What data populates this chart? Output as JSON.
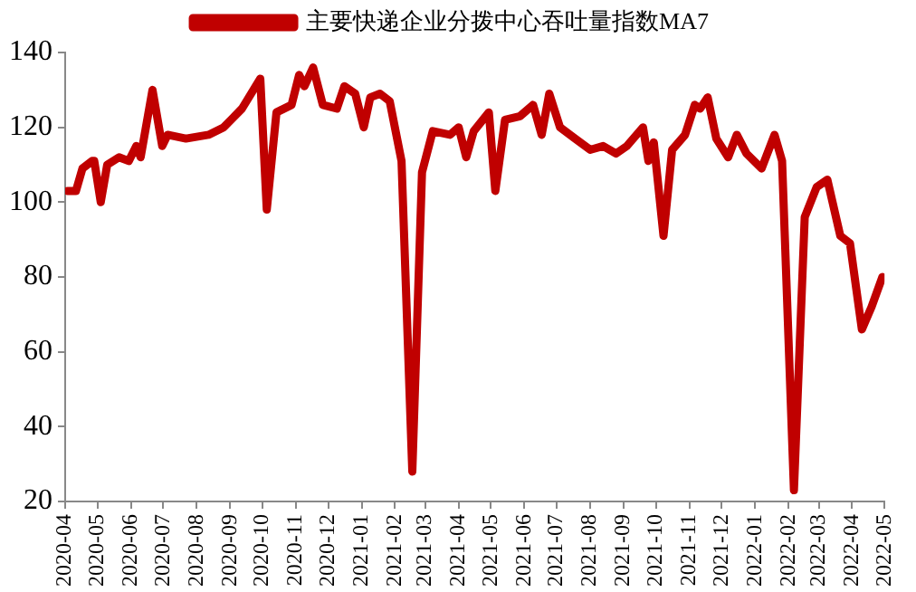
{
  "chart_data": {
    "type": "line",
    "legend": "top",
    "grid": false,
    "xlim": [
      "2020-04",
      "2022-05"
    ],
    "xticks": [
      "2020-04",
      "2020-05",
      "2020-06",
      "2020-07",
      "2020-08",
      "2020-09",
      "2020-10",
      "2020-11",
      "2020-12",
      "2021-01",
      "2021-02",
      "2021-03",
      "2021-04",
      "2021-05",
      "2021-06",
      "2021-07",
      "2021-08",
      "2021-09",
      "2021-10",
      "2021-11",
      "2021-12",
      "2022-01",
      "2022-02",
      "2022-03",
      "2022-04",
      "2022-05"
    ],
    "ylim": [
      20,
      140
    ],
    "yticks": [
      20,
      40,
      60,
      80,
      100,
      120,
      140
    ],
    "series": [
      {
        "name": "主要快递企业分拨中心吞吐量指数MA7",
        "color": "#c00000",
        "x": [
          "2020-04-03",
          "2020-04-11",
          "2020-04-17",
          "2020-04-26",
          "2020-04-28",
          "2020-05-04",
          "2020-05-10",
          "2020-05-21",
          "2020-05-30",
          "2020-06-06",
          "2020-06-10",
          "2020-06-21",
          "2020-06-30",
          "2020-07-05",
          "2020-07-22",
          "2020-08-12",
          "2020-08-26",
          "2020-09-12",
          "2020-09-29",
          "2020-10-05",
          "2020-10-14",
          "2020-10-28",
          "2020-11-04",
          "2020-11-09",
          "2020-11-17",
          "2020-11-26",
          "2020-12-09",
          "2020-12-16",
          "2020-12-26",
          "2021-01-03",
          "2021-01-09",
          "2021-01-18",
          "2021-01-27",
          "2021-02-07",
          "2021-02-17",
          "2021-02-26",
          "2021-03-08",
          "2021-03-24",
          "2021-04-01",
          "2021-04-08",
          "2021-04-15",
          "2021-04-29",
          "2021-05-05",
          "2021-05-14",
          "2021-05-28",
          "2021-06-09",
          "2021-06-17",
          "2021-06-24",
          "2021-07-04",
          "2021-07-18",
          "2021-08-01",
          "2021-08-13",
          "2021-08-25",
          "2021-09-04",
          "2021-09-19",
          "2021-09-24",
          "2021-09-29",
          "2021-10-08",
          "2021-10-16",
          "2021-10-28",
          "2021-11-06",
          "2021-11-11",
          "2021-11-18",
          "2021-11-26",
          "2021-12-07",
          "2021-12-15",
          "2021-12-24",
          "2022-01-07",
          "2022-01-19",
          "2022-01-26",
          "2022-02-06",
          "2022-02-16",
          "2022-02-27",
          "2022-03-09",
          "2022-03-21",
          "2022-03-30",
          "2022-04-10",
          "2022-04-19",
          "2022-04-29"
        ],
        "values": [
          103,
          103,
          109,
          111,
          111,
          100,
          110,
          112,
          111,
          115,
          112,
          130,
          115,
          118,
          117,
          118,
          120,
          125,
          133,
          98,
          124,
          126,
          134,
          131,
          136,
          126,
          125,
          131,
          129,
          120,
          128,
          129,
          127,
          111,
          28,
          108,
          119,
          118,
          120,
          112,
          119,
          124,
          103,
          122,
          123,
          126,
          118,
          129,
          120,
          117,
          114,
          115,
          113,
          115,
          120,
          111,
          116,
          91,
          114,
          118,
          126,
          125,
          128,
          117,
          112,
          118,
          113,
          109,
          118,
          111,
          23,
          96,
          104,
          106,
          91,
          89,
          66,
          72,
          80
        ]
      }
    ]
  }
}
